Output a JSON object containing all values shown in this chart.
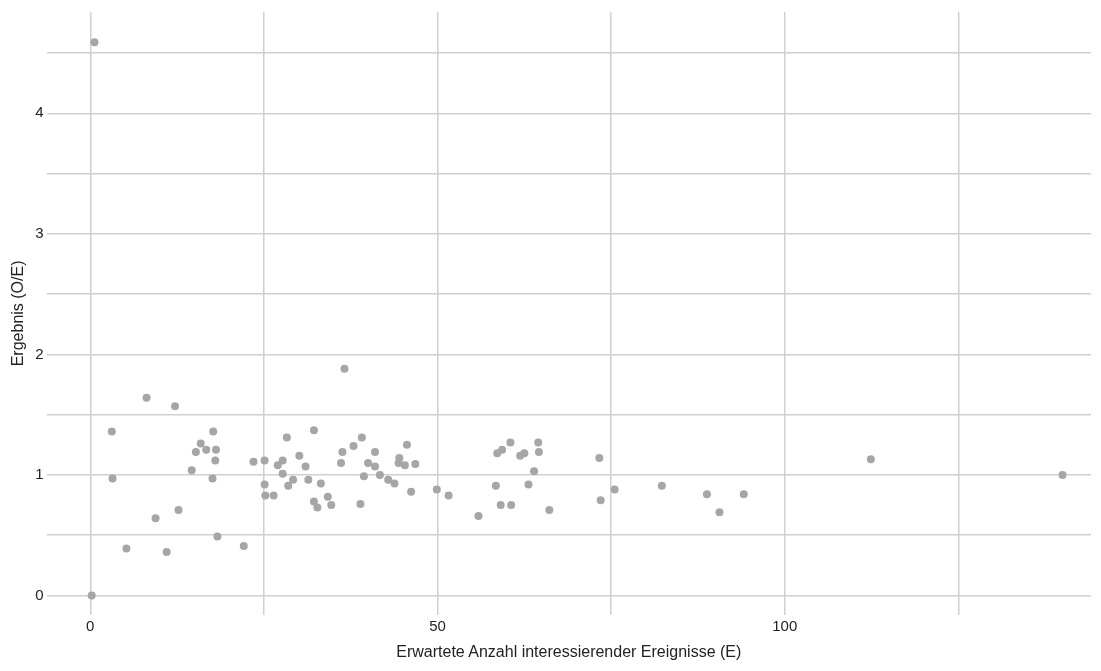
{
  "chart_data": {
    "type": "scatter",
    "xlabel": "Erwartete Anzahl interessierender Ereignisse (E)",
    "ylabel": "Ergebnis (O/E)",
    "x": [
      0.6,
      0.2,
      3.1,
      3.2,
      5.2,
      8.1,
      9.4,
      11.0,
      12.2,
      12.7,
      14.6,
      15.2,
      15.9,
      16.7,
      17.7,
      17.6,
      18.1,
      18.0,
      18.3,
      22.1,
      23.5,
      25.1,
      25.1,
      25.2,
      26.4,
      27.0,
      27.7,
      27.7,
      28.3,
      28.5,
      29.2,
      30.1,
      31.0,
      31.4,
      32.2,
      32.2,
      32.7,
      33.2,
      34.2,
      34.7,
      36.6,
      36.1,
      36.3,
      37.9,
      38.9,
      39.1,
      39.4,
      40.0,
      41.0,
      41.0,
      41.7,
      42.9,
      43.8,
      44.5,
      44.4,
      45.3,
      45.6,
      46.8,
      46.2,
      49.9,
      51.6,
      55.9,
      58.4,
      59.1,
      60.6,
      58.6,
      59.3,
      60.5,
      61.9,
      62.5,
      63.1,
      63.9,
      64.5,
      64.6,
      66.1,
      73.3,
      73.5,
      75.5,
      82.3,
      88.8,
      90.6,
      94.1,
      112.4,
      140.0
    ],
    "values": [
      4.59,
      0,
      1.36,
      0.97,
      0.39,
      1.64,
      0.64,
      0.36,
      1.57,
      0.71,
      1.04,
      1.19,
      1.26,
      1.21,
      1.36,
      0.97,
      1.21,
      1.12,
      0.49,
      0.41,
      1.11,
      1.12,
      0.92,
      0.83,
      0.83,
      1.08,
      1.12,
      1.01,
      1.31,
      0.91,
      0.96,
      1.16,
      1.07,
      0.96,
      1.37,
      0.78,
      0.73,
      0.93,
      0.82,
      0.75,
      1.88,
      1.1,
      1.19,
      1.24,
      0.76,
      1.31,
      0.99,
      1.1,
      1.19,
      1.07,
      1.0,
      0.96,
      0.93,
      1.14,
      1.1,
      1.08,
      1.25,
      1.09,
      0.86,
      0.88,
      0.83,
      0.66,
      0.91,
      0.75,
      0.75,
      1.18,
      1.21,
      1.27,
      1.16,
      1.18,
      0.92,
      1.03,
      1.27,
      1.19,
      0.71,
      1.14,
      0.79,
      0.88,
      0.91,
      0.84,
      0.69,
      0.84,
      1.13,
      1.0
    ],
    "color": "#a6a6a6",
    "marker": "circle",
    "grid": true,
    "legend": false,
    "xlim": [
      -6.3,
      144.1
    ],
    "ylim": [
      -0.16,
      4.84
    ],
    "xticks": [
      0,
      {
        "value": 25,
        "label": null
      },
      50,
      {
        "value": 75,
        "label": null
      },
      100,
      {
        "value": 125,
        "label": null
      }
    ],
    "yticks": [
      0,
      {
        "value": 0.5,
        "label": null
      },
      1,
      {
        "value": 1.5,
        "label": null
      },
      2,
      {
        "value": 2.5,
        "label": null
      },
      3,
      {
        "value": 3.5,
        "label": null
      },
      4,
      {
        "value": 4.5,
        "label": null
      }
    ]
  }
}
